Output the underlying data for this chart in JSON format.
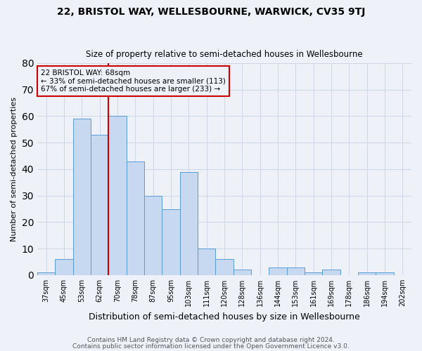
{
  "title": "22, BRISTOL WAY, WELLESBOURNE, WARWICK, CV35 9TJ",
  "subtitle": "Size of property relative to semi-detached houses in Wellesbourne",
  "xlabel": "Distribution of semi-detached houses by size in Wellesbourne",
  "ylabel": "Number of semi-detached properties",
  "footer1": "Contains HM Land Registry data © Crown copyright and database right 2024.",
  "footer2": "Contains public sector information licensed under the Open Government Licence v3.0.",
  "categories": [
    "37sqm",
    "45sqm",
    "53sqm",
    "62sqm",
    "70sqm",
    "78sqm",
    "87sqm",
    "95sqm",
    "103sqm",
    "111sqm",
    "120sqm",
    "128sqm",
    "136sqm",
    "144sqm",
    "153sqm",
    "161sqm",
    "169sqm",
    "178sqm",
    "186sqm",
    "194sqm",
    "202sqm"
  ],
  "values": [
    1,
    6,
    59,
    53,
    60,
    43,
    30,
    25,
    39,
    10,
    6,
    2,
    0,
    3,
    3,
    1,
    2,
    0,
    1,
    1,
    0
  ],
  "bar_color": "#c6d9f0",
  "bar_edge_color": "#5a9bd4",
  "property_label": "22 BRISTOL WAY: 68sqm",
  "pct_smaller": 33,
  "count_smaller": 113,
  "pct_larger": 67,
  "count_larger": 233,
  "vline_color": "#cc0000",
  "vline_x_index": 3.5,
  "ylim": [
    0,
    80
  ],
  "yticks": [
    0,
    10,
    20,
    30,
    40,
    50,
    60,
    70,
    80
  ],
  "grid_color": "#d0d8e8",
  "bg_color": "#eef2f8",
  "title_fontsize": 10,
  "subtitle_fontsize": 8.5,
  "ylabel_fontsize": 8,
  "xlabel_fontsize": 9,
  "tick_fontsize": 7,
  "footer_fontsize": 6.5,
  "ann_fontsize": 7.5
}
